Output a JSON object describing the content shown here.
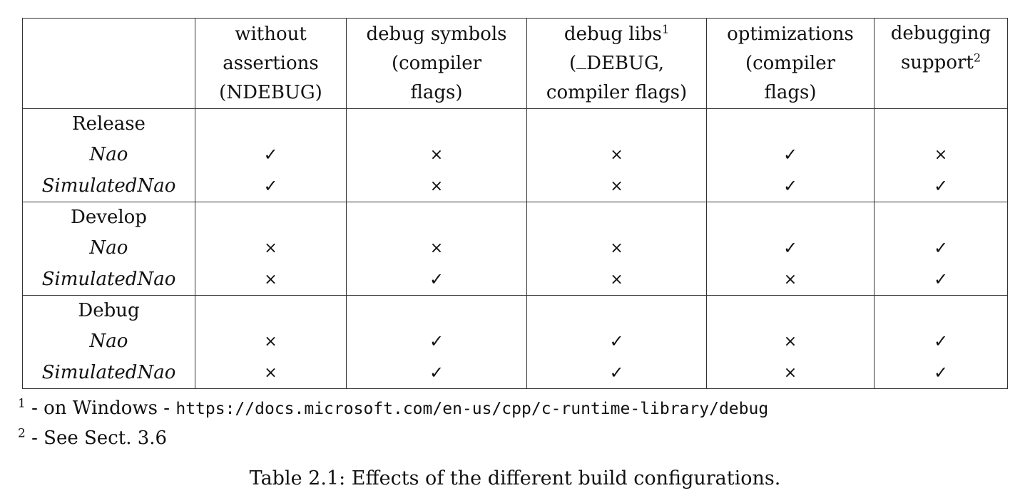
{
  "table": {
    "headers": [
      "",
      "without assertions (NDEBUG)",
      "debug symbols (compiler flags)",
      "debug libs (_DEBUG, compiler flags)",
      "optimizations (compiler flags)",
      "debugging support"
    ],
    "header_lines": {
      "h1": [
        "without",
        "assertions",
        "(NDEBUG)"
      ],
      "h2": [
        "debug symbols",
        "(compiler",
        "flags)"
      ],
      "h3": [
        "debug libs",
        "DEBUG,",
        "compiler flags)"
      ],
      "h3_sup": "1",
      "h3_prefix": "(",
      "h4": [
        "optimizations",
        "(compiler",
        "flags)"
      ],
      "h5": [
        "debugging",
        "support"
      ],
      "h5_sup": "2"
    },
    "marks": {
      "yes": "✓",
      "no": "×"
    },
    "groups": [
      {
        "label": "Release",
        "rows": [
          {
            "name": "Nao",
            "values": [
              "yes",
              "no",
              "no",
              "yes",
              "no"
            ]
          },
          {
            "name": "SimulatedNao",
            "values": [
              "yes",
              "no",
              "no",
              "yes",
              "yes"
            ]
          }
        ]
      },
      {
        "label": "Develop",
        "rows": [
          {
            "name": "Nao",
            "values": [
              "no",
              "no",
              "no",
              "yes",
              "yes"
            ]
          },
          {
            "name": "SimulatedNao",
            "values": [
              "no",
              "yes",
              "no",
              "no",
              "yes"
            ]
          }
        ]
      },
      {
        "label": "Debug",
        "rows": [
          {
            "name": "Nao",
            "values": [
              "no",
              "yes",
              "yes",
              "no",
              "yes"
            ]
          },
          {
            "name": "SimulatedNao",
            "values": [
              "no",
              "yes",
              "yes",
              "no",
              "yes"
            ]
          }
        ]
      }
    ]
  },
  "footnotes": [
    {
      "num": "1",
      "text": " - on Windows - ",
      "url": "https://docs.microsoft.com/en-us/cpp/c-runtime-library/debug"
    },
    {
      "num": "2",
      "text": " - See Sect. 3.6"
    }
  ],
  "caption": "Table 2.1: Effects of the different build configurations."
}
